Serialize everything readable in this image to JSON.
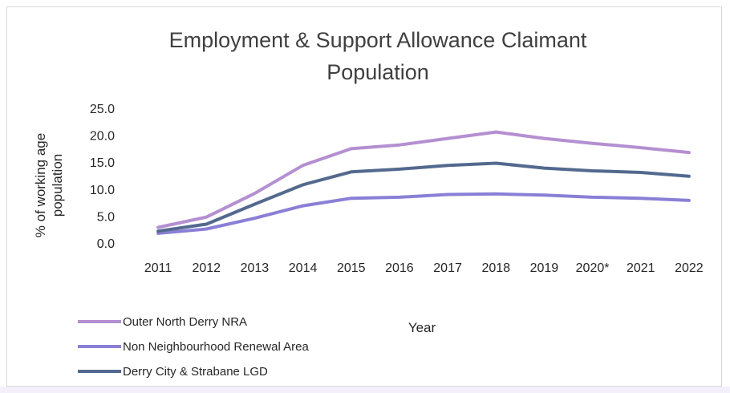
{
  "chart_data": {
    "type": "line",
    "title_lines": [
      "Employment & Support Allowance Claimant",
      "Population"
    ],
    "xlabel": "Year",
    "ylabel_lines": [
      "% of working age",
      "population"
    ],
    "categories": [
      "2011",
      "2012",
      "2013",
      "2014",
      "2015",
      "2016",
      "2017",
      "2018",
      "2019",
      "2020*",
      "2021",
      "2022"
    ],
    "ylim": [
      0,
      25
    ],
    "yticks": [
      "25.0",
      "20.0",
      "15.0",
      "10.0",
      "5.0",
      "0.0"
    ],
    "ytick_values": [
      25,
      20,
      15,
      10,
      5,
      0
    ],
    "grid": false,
    "legend_position": "bottom-left",
    "series": [
      {
        "name": "Outer North Derry NRA",
        "color": "#b48fd1",
        "values": [
          2.9,
          4.8,
          9.2,
          14.4,
          17.5,
          18.2,
          19.4,
          20.6,
          19.4,
          18.5,
          17.7,
          16.8
        ]
      },
      {
        "name": "Non Neighbourhood Renewal Area",
        "color": "#8a7fd6",
        "values": [
          1.8,
          2.6,
          4.6,
          6.9,
          8.3,
          8.5,
          9.0,
          9.1,
          8.9,
          8.5,
          8.3,
          7.9
        ]
      },
      {
        "name": "Derry City & Strabane LGD",
        "color": "#53698e",
        "values": [
          2.2,
          3.5,
          7.2,
          10.8,
          13.2,
          13.7,
          14.4,
          14.8,
          13.9,
          13.4,
          13.1,
          12.4
        ]
      }
    ]
  }
}
